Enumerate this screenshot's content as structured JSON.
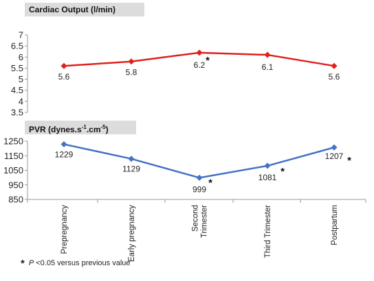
{
  "chart_data": [
    {
      "type": "line",
      "title": "Cardiac  Output (l/min)",
      "categories": [
        "Prepregnancy",
        "Early pregnancy",
        "Second Trimester",
        "Third Trimester",
        "Postpartum"
      ],
      "values": [
        5.6,
        5.8,
        6.2,
        6.1,
        5.6
      ],
      "data_labels": [
        "5.6",
        "5.8",
        "6.2",
        "6.1",
        "5.6"
      ],
      "significant": [
        false,
        false,
        true,
        false,
        false
      ],
      "ylim": [
        3.5,
        7
      ],
      "yticks": [
        "3.5",
        "4",
        "4.5",
        "5",
        "5.5",
        "6",
        "6.5",
        "7"
      ],
      "color": "#e0201b",
      "grid": false
    },
    {
      "type": "line",
      "title_main": "PVR (dynes.s",
      "title_sup1": "-1",
      "title_mid": ".cm",
      "title_sup2": "-5",
      "title_end": ")",
      "categories": [
        "Prepregnancy",
        "Early pregnancy",
        "Second Trimester",
        "Third Trimester",
        "Postpartum"
      ],
      "values": [
        1229,
        1129,
        999,
        1081,
        1207
      ],
      "data_labels": [
        "1229",
        "1129",
        "999",
        "1081",
        "1207"
      ],
      "significant": [
        false,
        false,
        true,
        true,
        true
      ],
      "ylim": [
        850,
        1250
      ],
      "yticks": [
        "850",
        "950",
        "1050",
        "1150",
        "1250"
      ],
      "color": "#4472c4",
      "grid": false
    }
  ],
  "x_tick_labels": [
    [
      "Prepregnancy"
    ],
    [
      "Early pregnancy"
    ],
    [
      "Second",
      "Trimester"
    ],
    [
      "Third Trimester"
    ],
    [
      "Postpartum"
    ]
  ],
  "significance_marker": "*",
  "footnote": {
    "star": "*",
    "p": "P",
    "text": " <0.05 versus previous value"
  }
}
